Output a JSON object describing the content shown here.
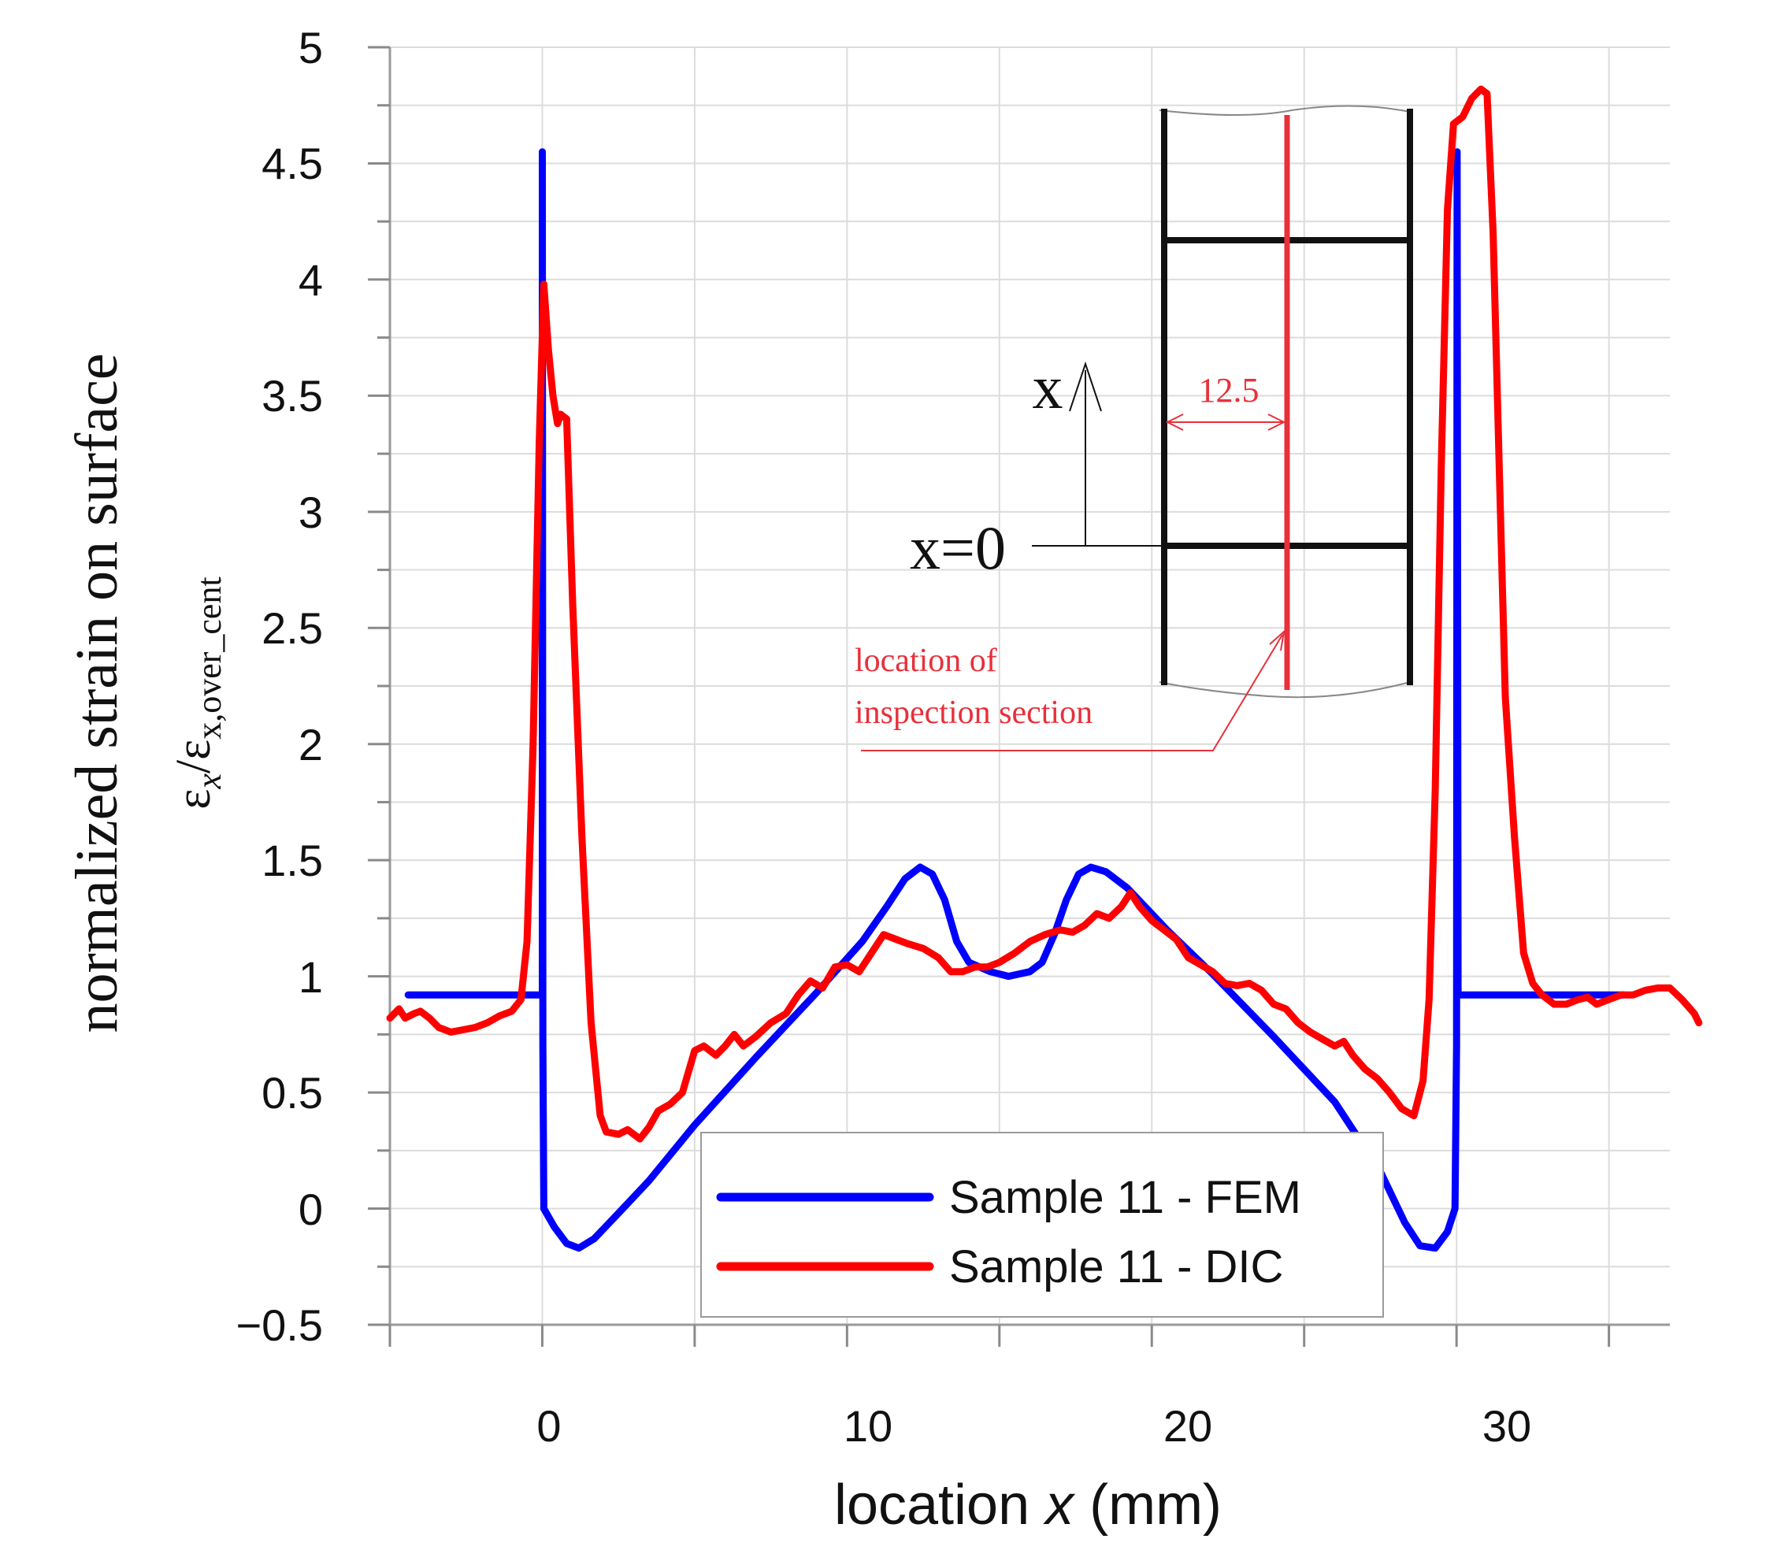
{
  "chart_data": {
    "type": "line",
    "xlabel": {
      "prefix": "location ",
      "var": "x",
      "suffix": " (mm)"
    },
    "ylabel": {
      "line1": "normalized strain on surface",
      "eps1": "ε",
      "sub1": "x",
      "slash": "/",
      "eps2": "ε",
      "sub2": "x,over_cent"
    },
    "xlim": [
      -5,
      37
    ],
    "ylim": [
      -0.5,
      5
    ],
    "x_ticks": [
      0,
      10,
      20,
      30
    ],
    "x_tick_labels": [
      "0",
      "10",
      "20",
      "30"
    ],
    "y_ticks": [
      -0.5,
      0,
      0.5,
      1,
      1.5,
      2,
      2.5,
      3,
      3.5,
      4,
      4.5,
      5
    ],
    "y_tick_labels": [
      "−0.5",
      "0",
      "0.5",
      "1",
      "1.5",
      "2",
      "2.5",
      "3",
      "3.5",
      "4",
      "4.5",
      "5"
    ],
    "legend_position": "bottom-center",
    "series": [
      {
        "name": "Sample 11 - FEM",
        "color": "#0000ff",
        "points": [
          [
            -4.4,
            0.92
          ],
          [
            0,
            0.92
          ],
          [
            0,
            4.55
          ],
          [
            0.02,
            0.7
          ],
          [
            0.05,
            0
          ],
          [
            0.4,
            -0.08
          ],
          [
            0.8,
            -0.15
          ],
          [
            1.2,
            -0.17
          ],
          [
            1.7,
            -0.13
          ],
          [
            2.5,
            -0.02
          ],
          [
            3.5,
            0.12
          ],
          [
            5,
            0.36
          ],
          [
            7,
            0.65
          ],
          [
            9,
            0.93
          ],
          [
            10.5,
            1.15
          ],
          [
            11.3,
            1.3
          ],
          [
            11.9,
            1.42
          ],
          [
            12.4,
            1.47
          ],
          [
            12.8,
            1.44
          ],
          [
            13.2,
            1.33
          ],
          [
            13.6,
            1.15
          ],
          [
            14,
            1.06
          ],
          [
            14.7,
            1.02
          ],
          [
            15.3,
            1
          ],
          [
            16,
            1.02
          ],
          [
            16.4,
            1.06
          ],
          [
            16.8,
            1.18
          ],
          [
            17.2,
            1.33
          ],
          [
            17.6,
            1.44
          ],
          [
            18,
            1.47
          ],
          [
            18.5,
            1.45
          ],
          [
            19.2,
            1.38
          ],
          [
            20.5,
            1.2
          ],
          [
            22,
            1.01
          ],
          [
            24,
            0.74
          ],
          [
            26,
            0.46
          ],
          [
            27.5,
            0.16
          ],
          [
            28.3,
            -0.06
          ],
          [
            28.8,
            -0.16
          ],
          [
            29.3,
            -0.17
          ],
          [
            29.7,
            -0.1
          ],
          [
            29.95,
            0
          ],
          [
            30,
            0.7
          ],
          [
            30.02,
            4.55
          ],
          [
            30.05,
            0.92
          ],
          [
            35.5,
            0.92
          ]
        ]
      },
      {
        "name": "Sample 11 - DIC",
        "color": "#ff0000",
        "points": [
          [
            -5,
            0.82
          ],
          [
            -4.7,
            0.86
          ],
          [
            -4.5,
            0.82
          ],
          [
            -4.2,
            0.84
          ],
          [
            -4,
            0.85
          ],
          [
            -3.7,
            0.82
          ],
          [
            -3.4,
            0.78
          ],
          [
            -3,
            0.76
          ],
          [
            -2.6,
            0.77
          ],
          [
            -2.2,
            0.78
          ],
          [
            -1.8,
            0.8
          ],
          [
            -1.4,
            0.83
          ],
          [
            -1,
            0.85
          ],
          [
            -0.7,
            0.9
          ],
          [
            -0.5,
            1.15
          ],
          [
            -0.3,
            2
          ],
          [
            -0.1,
            3.3
          ],
          [
            0.05,
            3.98
          ],
          [
            0.2,
            3.7
          ],
          [
            0.35,
            3.5
          ],
          [
            0.5,
            3.38
          ],
          [
            0.6,
            3.42
          ],
          [
            0.8,
            3.4
          ],
          [
            1,
            2.6
          ],
          [
            1.3,
            1.6
          ],
          [
            1.6,
            0.8
          ],
          [
            1.9,
            0.4
          ],
          [
            2.1,
            0.33
          ],
          [
            2.5,
            0.32
          ],
          [
            2.8,
            0.34
          ],
          [
            3.2,
            0.3
          ],
          [
            3.5,
            0.35
          ],
          [
            3.8,
            0.42
          ],
          [
            4.2,
            0.45
          ],
          [
            4.6,
            0.5
          ],
          [
            5,
            0.68
          ],
          [
            5.3,
            0.7
          ],
          [
            5.7,
            0.66
          ],
          [
            6,
            0.7
          ],
          [
            6.3,
            0.75
          ],
          [
            6.6,
            0.7
          ],
          [
            7,
            0.74
          ],
          [
            7.5,
            0.8
          ],
          [
            8,
            0.84
          ],
          [
            8.4,
            0.92
          ],
          [
            8.8,
            0.98
          ],
          [
            9.2,
            0.95
          ],
          [
            9.6,
            1.04
          ],
          [
            10,
            1.05
          ],
          [
            10.4,
            1.02
          ],
          [
            10.8,
            1.1
          ],
          [
            11.2,
            1.18
          ],
          [
            11.6,
            1.16
          ],
          [
            12,
            1.14
          ],
          [
            12.5,
            1.12
          ],
          [
            13,
            1.08
          ],
          [
            13.4,
            1.02
          ],
          [
            13.8,
            1.02
          ],
          [
            14.2,
            1.04
          ],
          [
            14.6,
            1.04
          ],
          [
            15,
            1.06
          ],
          [
            15.5,
            1.1
          ],
          [
            16,
            1.15
          ],
          [
            16.5,
            1.18
          ],
          [
            17,
            1.2
          ],
          [
            17.4,
            1.19
          ],
          [
            17.8,
            1.22
          ],
          [
            18.2,
            1.27
          ],
          [
            18.6,
            1.25
          ],
          [
            19,
            1.3
          ],
          [
            19.3,
            1.36
          ],
          [
            19.6,
            1.3
          ],
          [
            20,
            1.24
          ],
          [
            20.4,
            1.2
          ],
          [
            20.8,
            1.16
          ],
          [
            21.2,
            1.08
          ],
          [
            21.6,
            1.05
          ],
          [
            22,
            1.02
          ],
          [
            22.4,
            0.97
          ],
          [
            22.8,
            0.96
          ],
          [
            23.2,
            0.97
          ],
          [
            23.6,
            0.94
          ],
          [
            24,
            0.88
          ],
          [
            24.4,
            0.86
          ],
          [
            24.8,
            0.8
          ],
          [
            25.2,
            0.76
          ],
          [
            25.6,
            0.73
          ],
          [
            26,
            0.7
          ],
          [
            26.3,
            0.72
          ],
          [
            26.6,
            0.66
          ],
          [
            27,
            0.6
          ],
          [
            27.4,
            0.56
          ],
          [
            27.8,
            0.5
          ],
          [
            28.2,
            0.43
          ],
          [
            28.6,
            0.4
          ],
          [
            28.9,
            0.55
          ],
          [
            29.1,
            0.9
          ],
          [
            29.3,
            1.8
          ],
          [
            29.5,
            3.2
          ],
          [
            29.7,
            4.3
          ],
          [
            29.9,
            4.67
          ],
          [
            30.2,
            4.7
          ],
          [
            30.5,
            4.78
          ],
          [
            30.8,
            4.82
          ],
          [
            31,
            4.8
          ],
          [
            31.2,
            4.2
          ],
          [
            31.4,
            3.2
          ],
          [
            31.6,
            2.2
          ],
          [
            31.9,
            1.6
          ],
          [
            32.2,
            1.1
          ],
          [
            32.5,
            0.97
          ],
          [
            32.8,
            0.92
          ],
          [
            33.2,
            0.88
          ],
          [
            33.6,
            0.88
          ],
          [
            34,
            0.9
          ],
          [
            34.3,
            0.91
          ],
          [
            34.6,
            0.88
          ],
          [
            35,
            0.9
          ],
          [
            35.4,
            0.92
          ],
          [
            35.8,
            0.92
          ],
          [
            36.2,
            0.94
          ],
          [
            36.6,
            0.95
          ],
          [
            37,
            0.95
          ],
          [
            37.4,
            0.9
          ],
          [
            37.8,
            0.84
          ],
          [
            38,
            0.8
          ]
        ]
      }
    ],
    "inset": {
      "x_label": "x",
      "x0_label": "x=0",
      "dim_label": "12.5",
      "note_line1": "location of",
      "note_line2": "inspection section",
      "accent_color": "#e8303a"
    }
  }
}
